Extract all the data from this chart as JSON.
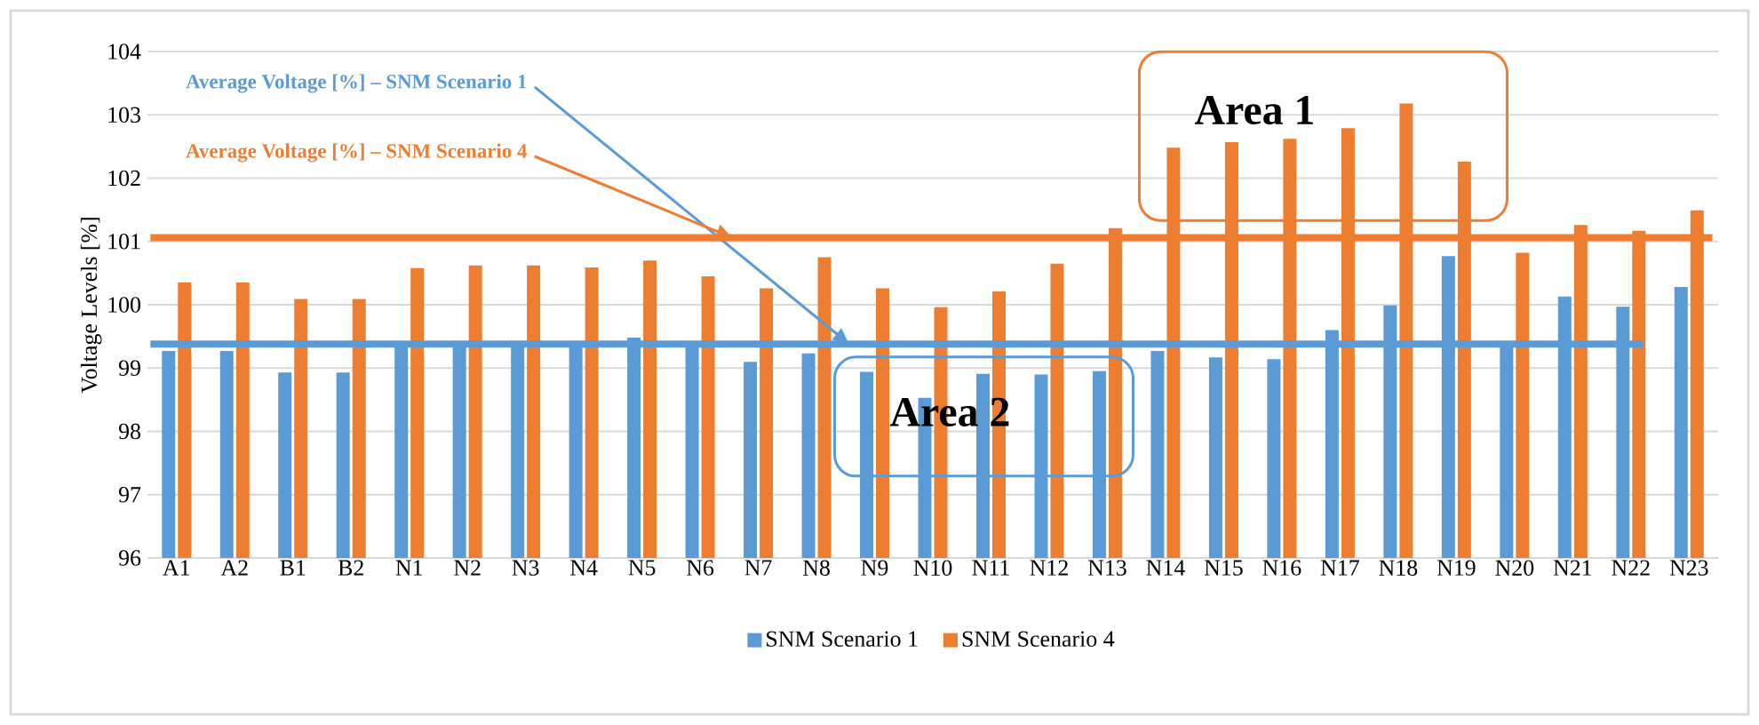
{
  "chart_data": {
    "type": "bar",
    "ylabel": "Voltage Levels [%]",
    "categories": [
      "A1",
      "A2",
      "B1",
      "B2",
      "N1",
      "N2",
      "N3",
      "N4",
      "N5",
      "N6",
      "N7",
      "N8",
      "N9",
      "N10",
      "N11",
      "N12",
      "N13",
      "N14",
      "N15",
      "N16",
      "N17",
      "N18",
      "N19",
      "N20",
      "N21",
      "N22",
      "N23"
    ],
    "series": [
      {
        "name": "SNM Scenario 1",
        "color": "#5b9bd5",
        "values": [
          99.27,
          99.27,
          98.93,
          98.93,
          99.35,
          99.35,
          99.35,
          99.35,
          99.48,
          99.35,
          99.1,
          99.23,
          98.94,
          98.53,
          98.91,
          98.9,
          98.95,
          99.27,
          99.17,
          99.14,
          99.6,
          99.99,
          100.77,
          99.35,
          100.13,
          99.97,
          100.28
        ]
      },
      {
        "name": "SNM Scenario 4",
        "color": "#ed7d31",
        "values": [
          100.35,
          100.35,
          100.09,
          100.09,
          100.58,
          100.62,
          100.62,
          100.59,
          100.7,
          100.45,
          100.26,
          100.75,
          100.26,
          99.96,
          100.21,
          100.65,
          101.21,
          102.48,
          102.57,
          102.62,
          102.79,
          103.18,
          102.26,
          100.82,
          101.26,
          101.17,
          101.49
        ]
      }
    ],
    "ylim": [
      96,
      104
    ],
    "yticks": [
      96,
      97,
      98,
      99,
      100,
      101,
      102,
      103,
      104
    ],
    "grid": "y",
    "legend": "bottom",
    "ref_lines": [
      {
        "axis": "y",
        "value": 99.38,
        "label": "Average Voltage [%] – SNM Scenario 1",
        "color": "#5b9bd5"
      },
      {
        "axis": "y",
        "value": 101.06,
        "label": "Average Voltage [%] – SNM Scenario 4",
        "color": "#ed7d31"
      }
    ],
    "annotations": [
      "Area 1",
      "Area 2"
    ]
  }
}
